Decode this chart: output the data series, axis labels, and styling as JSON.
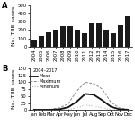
{
  "panel_a": {
    "years": [
      "2004",
      "2005",
      "2006",
      "2007",
      "2008",
      "2009",
      "2010",
      "2011",
      "2012",
      "2013",
      "2014",
      "2015",
      "2016",
      "2017"
    ],
    "values": [
      75,
      130,
      175,
      200,
      245,
      250,
      205,
      165,
      280,
      275,
      205,
      165,
      255,
      370
    ],
    "bar_color": "#1a1a1a",
    "ylabel": "No. TBE cases",
    "ylim": [
      0,
      500
    ],
    "yticks": [
      0,
      100,
      200,
      300,
      400,
      500
    ]
  },
  "panel_b": {
    "months": [
      "Jan",
      "Feb",
      "Mar",
      "Apr",
      "May",
      "Jun",
      "Jul",
      "Aug",
      "Sep",
      "Oct",
      "Nov",
      "Dec"
    ],
    "mean": [
      1,
      1,
      1,
      3,
      10,
      30,
      58,
      55,
      35,
      12,
      3,
      1
    ],
    "maximum": [
      3,
      2,
      3,
      8,
      22,
      68,
      100,
      95,
      75,
      28,
      8,
      3
    ],
    "minimum": [
      0,
      0,
      0,
      0,
      2,
      8,
      18,
      15,
      8,
      2,
      0,
      0
    ],
    "mean_color": "#111111",
    "max_color": "#888888",
    "min_color": "#aaaaaa",
    "ylabel": "No. TBE cases",
    "ylim": [
      0,
      150
    ],
    "yticks": [
      0,
      25,
      50,
      75,
      100,
      125,
      150
    ],
    "legend_title": "2004–2017",
    "legend_items": [
      "Mean",
      "Maximum",
      "Minimum"
    ]
  },
  "background_color": "#ffffff",
  "tick_labelsize": 3.8,
  "axis_labelsize": 4.5,
  "legend_fontsize": 3.5,
  "panel_label_fontsize": 6.0
}
